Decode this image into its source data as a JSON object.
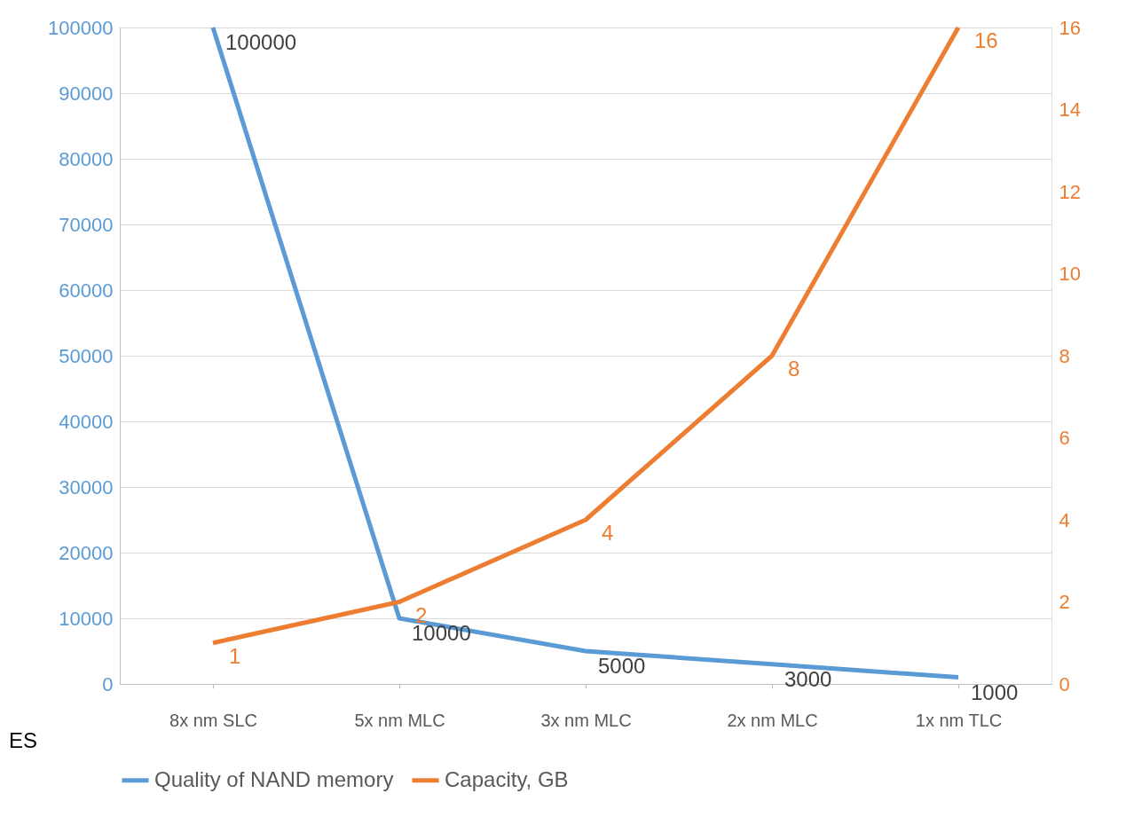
{
  "chart_data": {
    "type": "line",
    "categories": [
      "8x nm SLC",
      "5x nm MLC",
      "3x nm MLC",
      "2x nm MLC",
      "1x nm TLC"
    ],
    "series": [
      {
        "name": "Quality of NAND memory",
        "color": "#5b9bd5",
        "values": [
          100000,
          10000,
          5000,
          3000,
          1000
        ]
      },
      {
        "name": "Capacity, GB",
        "color": "#ed7d31",
        "values": [
          1,
          2,
          4,
          8,
          16
        ],
        "axis": "y2"
      }
    ],
    "ylim": [
      0,
      100000
    ],
    "yticks": [
      0,
      10000,
      20000,
      30000,
      40000,
      50000,
      60000,
      70000,
      80000,
      90000,
      100000
    ],
    "y2lim": [
      0,
      16
    ],
    "y2ticks": [
      0,
      2,
      4,
      6,
      8,
      10,
      12,
      14,
      16
    ],
    "grid": "y",
    "legend": "bottom",
    "data_labels": true,
    "line_style": "solid",
    "marker": "none",
    "annotations": [
      "ES"
    ]
  }
}
